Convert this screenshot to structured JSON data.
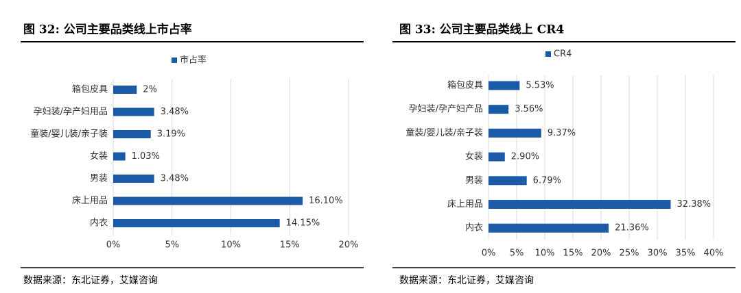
{
  "chart_data": [
    {
      "type": "bar",
      "orientation": "horizontal",
      "title": "图 32: 公司主要品类线上市占率",
      "categories": [
        "箱包皮具",
        "孕妇装/孕产妇用品",
        "童装/婴儿装/亲子装",
        "女装",
        "男装",
        "床上用品",
        "内衣"
      ],
      "series": [
        {
          "name": "市占率",
          "color": "#1b5aa6",
          "values": [
            2,
            3.48,
            3.19,
            1.03,
            3.48,
            16.1,
            14.15
          ],
          "value_labels": [
            "2%",
            "3.48%",
            "3.19%",
            "1.03%",
            "3.48%",
            "16.10%",
            "14.15%"
          ]
        }
      ],
      "xlim": [
        0,
        20
      ],
      "xticks": [
        {
          "value": 0,
          "label": "0%"
        },
        {
          "value": 5,
          "label": "5%"
        },
        {
          "value": 10,
          "label": "10%"
        },
        {
          "value": 15,
          "label": "15%"
        },
        {
          "value": 20,
          "label": "20%"
        }
      ],
      "grid": true,
      "legend": "top",
      "source": "数据来源：东北证券，艾媒咨询"
    },
    {
      "type": "bar",
      "orientation": "horizontal",
      "title": "图 33: 公司主要品类线上 CR4",
      "categories": [
        "箱包皮具",
        "孕妇装/孕产妇产品",
        "童装/婴儿装/亲子装",
        "女装",
        "男装",
        "床上用品",
        "内衣"
      ],
      "series": [
        {
          "name": "CR4",
          "color": "#1b5aa6",
          "values": [
            5.53,
            3.56,
            9.37,
            2.9,
            6.79,
            32.38,
            21.36
          ],
          "value_labels": [
            "5.53%",
            "3.56%",
            "9.37%",
            "2.90%",
            "6.79%",
            "32.38%",
            "21.36%"
          ]
        }
      ],
      "xlim": [
        0,
        40
      ],
      "xticks": [
        {
          "value": 0,
          "label": "0%"
        },
        {
          "value": 5,
          "label": "5%"
        },
        {
          "value": 10,
          "label": "10%"
        },
        {
          "value": 15,
          "label": "15%"
        },
        {
          "value": 20,
          "label": "20%"
        },
        {
          "value": 25,
          "label": "25%"
        },
        {
          "value": 30,
          "label": "30%"
        },
        {
          "value": 35,
          "label": "35%"
        },
        {
          "value": 40,
          "label": "40%"
        }
      ],
      "grid": true,
      "legend": "top",
      "source": "数据来源：东北证券，艾媒咨询"
    }
  ]
}
